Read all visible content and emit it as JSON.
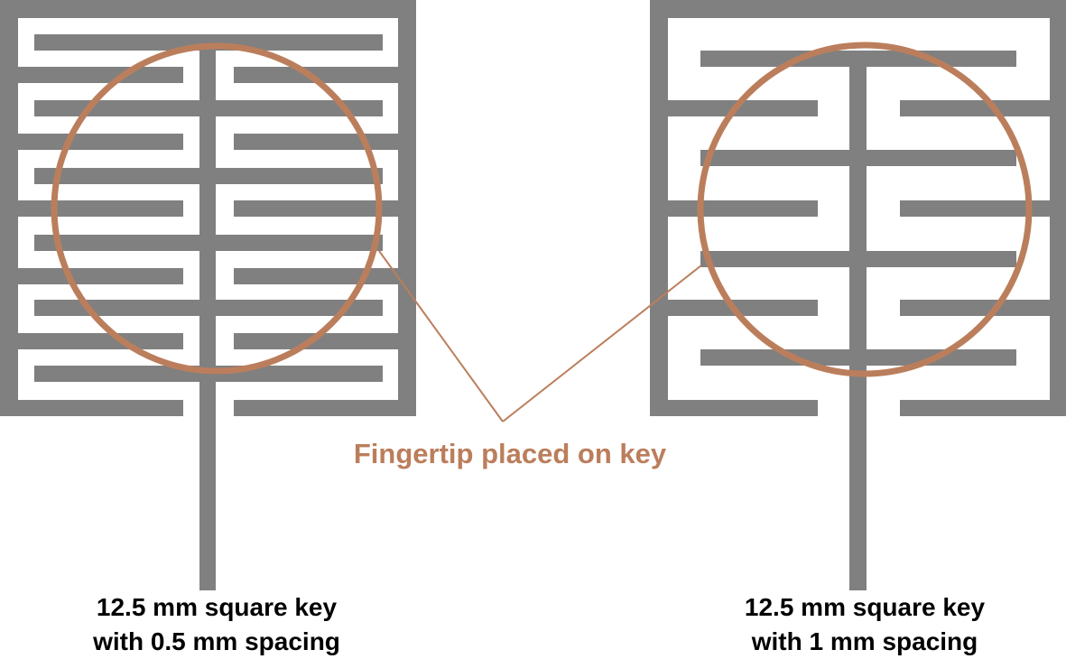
{
  "colors": {
    "electrode": "#808080",
    "fingertip": "#bb7e5c",
    "background": "#ffffff",
    "label_text": "#000000"
  },
  "callout": {
    "text": "Fingertip placed on key"
  },
  "keys": [
    {
      "id": "key-0-5mm",
      "label_line1": "12.5 mm square key",
      "label_line2": "with 0.5 mm spacing"
    },
    {
      "id": "key-1mm",
      "label_line1": "12.5 mm square key",
      "label_line2": "with 1 mm spacing"
    }
  ]
}
